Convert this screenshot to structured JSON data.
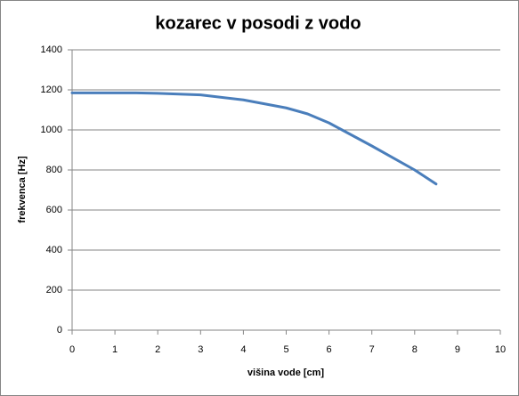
{
  "chart_data": {
    "type": "line",
    "title": "kozarec v posodi z vodo",
    "x_label": "višina vode [cm]",
    "y_label": "frekvenca [Hz]",
    "x": [
      0,
      1,
      1.5,
      2,
      3,
      4,
      5,
      5.5,
      6,
      7,
      8,
      8.5
    ],
    "values": [
      1185,
      1185,
      1185,
      1183,
      1175,
      1150,
      1110,
      1080,
      1035,
      920,
      800,
      730
    ],
    "color": "#4a7ebb",
    "xlim": [
      0,
      10
    ],
    "xticks": [
      0,
      1,
      2,
      3,
      4,
      5,
      6,
      7,
      8,
      9,
      10
    ],
    "ylim": [
      0,
      1400
    ],
    "yticks": [
      0,
      200,
      400,
      600,
      800,
      1000,
      1200,
      1400
    ],
    "grid": true
  }
}
